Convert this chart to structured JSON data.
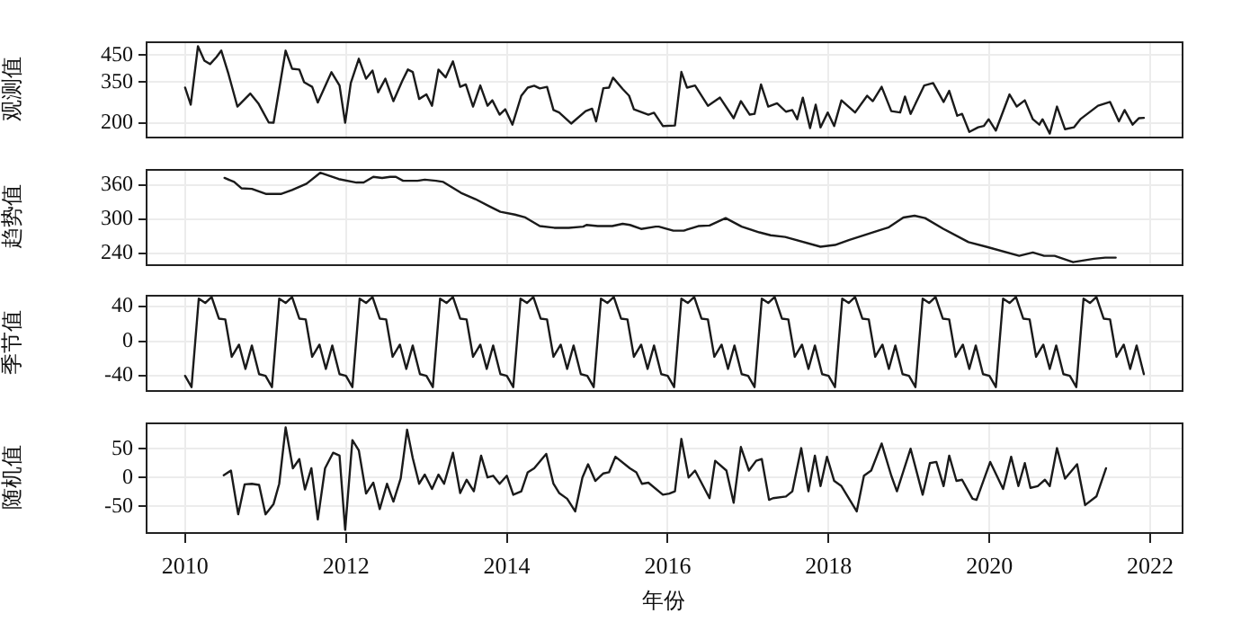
{
  "chart_data": [
    {
      "type": "line",
      "ylabel": "观测值",
      "color": "#1a1a1a",
      "marker": "none",
      "line_style": "solid",
      "grid": true,
      "tick_labels": "y",
      "xlim": [
        2009.51,
        2022.39
      ],
      "xticks": [
        2010,
        2012,
        2014,
        2016,
        2018,
        2020,
        2022
      ],
      "ylim": [
        150,
        500
      ],
      "yticks": [
        200,
        350,
        450
      ],
      "x": [
        2010.0,
        2010.07,
        2010.16,
        2010.24,
        2010.31,
        2010.39,
        2010.45,
        2010.54,
        2010.65,
        2010.81,
        2010.91,
        2011.04,
        2011.1,
        2011.25,
        2011.33,
        2011.42,
        2011.48,
        2011.58,
        2011.65,
        2011.82,
        2011.92,
        2011.99,
        2012.06,
        2012.16,
        2012.25,
        2012.33,
        2012.4,
        2012.49,
        2012.59,
        2012.7,
        2012.77,
        2012.83,
        2012.91,
        2013.0,
        2013.07,
        2013.15,
        2013.24,
        2013.33,
        2013.42,
        2013.49,
        2013.58,
        2013.67,
        2013.76,
        2013.82,
        2013.91,
        2013.98,
        2014.07,
        2014.18,
        2014.26,
        2014.34,
        2014.41,
        2014.5,
        2014.58,
        2014.65,
        2014.8,
        2014.98,
        2015.06,
        2015.11,
        2015.2,
        2015.27,
        2015.32,
        2015.44,
        2015.52,
        2015.58,
        2015.76,
        2015.83,
        2015.94,
        2016.09,
        2016.17,
        2016.24,
        2016.34,
        2016.5,
        2016.65,
        2016.82,
        2016.91,
        2017.02,
        2017.08,
        2017.16,
        2017.25,
        2017.36,
        2017.47,
        2017.55,
        2017.61,
        2017.68,
        2017.77,
        2017.84,
        2017.9,
        2017.99,
        2018.07,
        2018.16,
        2018.33,
        2018.48,
        2018.55,
        2018.66,
        2018.78,
        2018.89,
        2018.95,
        2019.02,
        2019.19,
        2019.3,
        2019.43,
        2019.5,
        2019.6,
        2019.66,
        2019.75,
        2019.86,
        2019.93,
        2019.99,
        2020.08,
        2020.25,
        2020.34,
        2020.44,
        2020.54,
        2020.62,
        2020.66,
        2020.75,
        2020.84,
        2020.94,
        2021.05,
        2021.13,
        2021.35,
        2021.5,
        2021.61,
        2021.68,
        2021.78,
        2021.86,
        2021.92
      ],
      "values": [
        330,
        267,
        483,
        430,
        417,
        443,
        467,
        380,
        260,
        308,
        272,
        201,
        200,
        467,
        400,
        397,
        350,
        333,
        275,
        387,
        338,
        200,
        347,
        437,
        363,
        393,
        313,
        363,
        280,
        355,
        397,
        388,
        288,
        305,
        263,
        397,
        368,
        427,
        333,
        342,
        260,
        338,
        263,
        283,
        230,
        250,
        193,
        300,
        330,
        337,
        327,
        333,
        247,
        238,
        197,
        243,
        252,
        205,
        328,
        330,
        367,
        325,
        300,
        250,
        230,
        237,
        188,
        190,
        388,
        330,
        338,
        263,
        293,
        217,
        280,
        230,
        233,
        342,
        260,
        272,
        241,
        247,
        213,
        293,
        180,
        267,
        183,
        238,
        188,
        283,
        238,
        300,
        280,
        333,
        243,
        238,
        297,
        233,
        338,
        347,
        277,
        318,
        226,
        233,
        166,
        183,
        188,
        213,
        171,
        305,
        260,
        283,
        213,
        193,
        213,
        160,
        260,
        176,
        183,
        213,
        263,
        277,
        205,
        247,
        193,
        217,
        218
      ]
    },
    {
      "type": "line",
      "ylabel": "趋势值",
      "color": "#1a1a1a",
      "marker": "none",
      "line_style": "solid",
      "grid": true,
      "tick_labels": "y",
      "xlim": [
        2009.51,
        2022.39
      ],
      "xticks": [
        2010,
        2012,
        2014,
        2016,
        2018,
        2020,
        2022
      ],
      "ylim": [
        222,
        387
      ],
      "yticks": [
        240,
        300,
        360
      ],
      "x": [
        2010.49,
        2010.61,
        2010.7,
        2010.83,
        2011.01,
        2011.19,
        2011.33,
        2011.51,
        2011.68,
        2011.91,
        2012.13,
        2012.22,
        2012.34,
        2012.45,
        2012.55,
        2012.62,
        2012.71,
        2012.89,
        2012.98,
        2013.12,
        2013.21,
        2013.43,
        2013.61,
        2013.79,
        2013.92,
        2014.1,
        2014.23,
        2014.41,
        2014.59,
        2014.77,
        2014.95,
        2014.99,
        2015.13,
        2015.31,
        2015.44,
        2015.53,
        2015.67,
        2015.85,
        2015.89,
        2016.07,
        2016.2,
        2016.38,
        2016.52,
        2016.72,
        2016.92,
        2017.14,
        2017.28,
        2017.46,
        2017.9,
        2018.08,
        2018.26,
        2018.53,
        2018.75,
        2018.93,
        2019.07,
        2019.2,
        2019.43,
        2019.74,
        2019.96,
        2020.37,
        2020.54,
        2020.68,
        2020.81,
        2021.04,
        2021.3,
        2021.44,
        2021.57
      ],
      "values": [
        372,
        365,
        354,
        353,
        344,
        344,
        351,
        362,
        381,
        370,
        364,
        364,
        374,
        372,
        374,
        374,
        367,
        367,
        369,
        367,
        365,
        346,
        335,
        322,
        313,
        308,
        303,
        288,
        285,
        285,
        287,
        290,
        288,
        288,
        292,
        290,
        283,
        287,
        287,
        280,
        280,
        288,
        289,
        302,
        287,
        277,
        272,
        269,
        252,
        255,
        264,
        276,
        286,
        303,
        306,
        302,
        283,
        260,
        252,
        236,
        242,
        236,
        236,
        225,
        231,
        233,
        233
      ]
    },
    {
      "type": "line",
      "ylabel": "季节值",
      "color": "#1a1a1a",
      "marker": "none",
      "line_style": "solid",
      "grid": true,
      "tick_labels": "y",
      "xlim": [
        2009.51,
        2022.39
      ],
      "xticks": [
        2010,
        2012,
        2014,
        2016,
        2018,
        2020,
        2022
      ],
      "ylim": [
        -56,
        53
      ],
      "yticks": [
        -40,
        0,
        40
      ],
      "x": [
        2010.0,
        2010.08,
        2010.17,
        2010.25,
        2010.33,
        2010.42,
        2010.5,
        2010.58,
        2010.67,
        2010.75,
        2010.83,
        2010.92,
        2011.0,
        2011.08,
        2011.17,
        2011.25,
        2011.33,
        2011.42,
        2011.5,
        2011.58,
        2011.67,
        2011.75,
        2011.83,
        2011.92,
        2012.0,
        2012.08,
        2012.17,
        2012.25,
        2012.33,
        2012.42,
        2012.5,
        2012.58,
        2012.67,
        2012.75,
        2012.83,
        2012.92,
        2013.0,
        2013.08,
        2013.17,
        2013.25,
        2013.33,
        2013.42,
        2013.5,
        2013.58,
        2013.67,
        2013.75,
        2013.83,
        2013.92,
        2014.0,
        2014.08,
        2014.17,
        2014.25,
        2014.33,
        2014.42,
        2014.5,
        2014.58,
        2014.67,
        2014.75,
        2014.83,
        2014.92,
        2015.0,
        2015.08,
        2015.17,
        2015.25,
        2015.33,
        2015.42,
        2015.5,
        2015.58,
        2015.67,
        2015.75,
        2015.83,
        2015.92,
        2016.0,
        2016.08,
        2016.17,
        2016.25,
        2016.33,
        2016.42,
        2016.5,
        2016.58,
        2016.67,
        2016.75,
        2016.83,
        2016.92,
        2017.0,
        2017.08,
        2017.17,
        2017.25,
        2017.33,
        2017.42,
        2017.5,
        2017.58,
        2017.67,
        2017.75,
        2017.83,
        2017.92,
        2018.0,
        2018.08,
        2018.17,
        2018.25,
        2018.33,
        2018.42,
        2018.5,
        2018.58,
        2018.67,
        2018.75,
        2018.83,
        2018.92,
        2019.0,
        2019.08,
        2019.17,
        2019.25,
        2019.33,
        2019.42,
        2019.5,
        2019.58,
        2019.67,
        2019.75,
        2019.83,
        2019.92,
        2020.0,
        2020.08,
        2020.17,
        2020.25,
        2020.33,
        2020.42,
        2020.5,
        2020.58,
        2020.67,
        2020.75,
        2020.83,
        2020.92,
        2021.0,
        2021.08,
        2021.17,
        2021.25,
        2021.33,
        2021.42,
        2021.5,
        2021.58,
        2021.67,
        2021.75,
        2021.83,
        2021.92
      ],
      "values": [
        -40,
        -53,
        49,
        44,
        51,
        26,
        25,
        -18,
        -4,
        -32,
        -5,
        -38,
        -40,
        -53,
        49,
        44,
        51,
        26,
        25,
        -18,
        -4,
        -32,
        -5,
        -38,
        -40,
        -53,
        49,
        44,
        51,
        26,
        25,
        -18,
        -4,
        -32,
        -5,
        -38,
        -40,
        -53,
        49,
        44,
        51,
        26,
        25,
        -18,
        -4,
        -32,
        -5,
        -38,
        -40,
        -53,
        49,
        44,
        51,
        26,
        25,
        -18,
        -4,
        -32,
        -5,
        -38,
        -40,
        -53,
        49,
        44,
        51,
        26,
        25,
        -18,
        -4,
        -32,
        -5,
        -38,
        -40,
        -53,
        49,
        44,
        51,
        26,
        25,
        -18,
        -4,
        -32,
        -5,
        -38,
        -40,
        -53,
        49,
        44,
        51,
        26,
        25,
        -18,
        -4,
        -32,
        -5,
        -38,
        -40,
        -53,
        49,
        44,
        51,
        26,
        25,
        -18,
        -4,
        -32,
        -5,
        -38,
        -40,
        -53,
        49,
        44,
        51,
        26,
        25,
        -18,
        -4,
        -32,
        -5,
        -38,
        -40,
        -53,
        49,
        44,
        51,
        26,
        25,
        -18,
        -4,
        -32,
        -5,
        -38,
        -40,
        -53,
        49,
        44,
        51,
        26,
        25,
        -18,
        -4,
        -32,
        -5,
        -38
      ]
    },
    {
      "type": "line",
      "ylabel": "随机值",
      "xlabel": "年份",
      "color": "#1a1a1a",
      "marker": "none",
      "line_style": "solid",
      "grid": true,
      "xlim": [
        2009.51,
        2022.39
      ],
      "xticks": [
        2010,
        2012,
        2014,
        2016,
        2018,
        2020,
        2022
      ],
      "ylim": [
        -95,
        95
      ],
      "yticks": [
        -50,
        0,
        50
      ],
      "x": [
        2010.48,
        2010.57,
        2010.66,
        2010.74,
        2010.83,
        2010.92,
        2011.0,
        2011.1,
        2011.17,
        2011.25,
        2011.34,
        2011.42,
        2011.49,
        2011.57,
        2011.65,
        2011.74,
        2011.84,
        2011.92,
        2011.99,
        2012.08,
        2012.16,
        2012.25,
        2012.34,
        2012.42,
        2012.51,
        2012.59,
        2012.68,
        2012.76,
        2012.83,
        2012.91,
        2012.98,
        2013.07,
        2013.15,
        2013.22,
        2013.33,
        2013.42,
        2013.5,
        2013.59,
        2013.68,
        2013.76,
        2013.83,
        2013.91,
        2014.0,
        2014.08,
        2014.18,
        2014.26,
        2014.34,
        2014.49,
        2014.58,
        2014.65,
        2014.75,
        2014.85,
        2014.94,
        2015.01,
        2015.1,
        2015.2,
        2015.27,
        2015.35,
        2015.53,
        2015.61,
        2015.68,
        2015.76,
        2015.94,
        2016.02,
        2016.09,
        2016.17,
        2016.26,
        2016.34,
        2016.52,
        2016.59,
        2016.73,
        2016.82,
        2016.91,
        2017.01,
        2017.1,
        2017.17,
        2017.26,
        2017.31,
        2017.47,
        2017.55,
        2017.66,
        2017.75,
        2017.83,
        2017.9,
        2017.98,
        2018.07,
        2018.16,
        2018.35,
        2018.44,
        2018.53,
        2018.66,
        2018.78,
        2018.85,
        2019.02,
        2019.17,
        2019.26,
        2019.34,
        2019.43,
        2019.5,
        2019.59,
        2019.66,
        2019.79,
        2019.84,
        2020.01,
        2020.17,
        2020.27,
        2020.36,
        2020.44,
        2020.51,
        2020.6,
        2020.69,
        2020.75,
        2020.84,
        2020.94,
        2021.09,
        2021.19,
        2021.33,
        2021.45
      ],
      "values": [
        4,
        12,
        -64,
        -12,
        -11,
        -13,
        -64,
        -46,
        -11,
        87,
        16,
        32,
        -21,
        16,
        -73,
        16,
        43,
        38,
        -91,
        65,
        47,
        -28,
        -9,
        -55,
        -11,
        -42,
        -2,
        83,
        34,
        -11,
        5,
        -20,
        5,
        -11,
        43,
        -27,
        -4,
        -24,
        38,
        0,
        3,
        -11,
        3,
        -30,
        -24,
        9,
        16,
        41,
        -11,
        -27,
        -37,
        -59,
        0,
        23,
        -6,
        7,
        9,
        36,
        16,
        9,
        -11,
        -9,
        -30,
        -28,
        -24,
        67,
        0,
        12,
        -36,
        29,
        12,
        -44,
        53,
        12,
        29,
        32,
        -39,
        -36,
        -33,
        -24,
        51,
        -24,
        38,
        -15,
        36,
        -6,
        -15,
        -59,
        3,
        12,
        59,
        3,
        -24,
        50,
        -30,
        25,
        27,
        -15,
        38,
        -6,
        -4,
        -37,
        -39,
        27,
        -20,
        36,
        -15,
        25,
        -18,
        -15,
        -4,
        -15,
        51,
        -2,
        23,
        -48,
        -33,
        16
      ]
    }
  ]
}
